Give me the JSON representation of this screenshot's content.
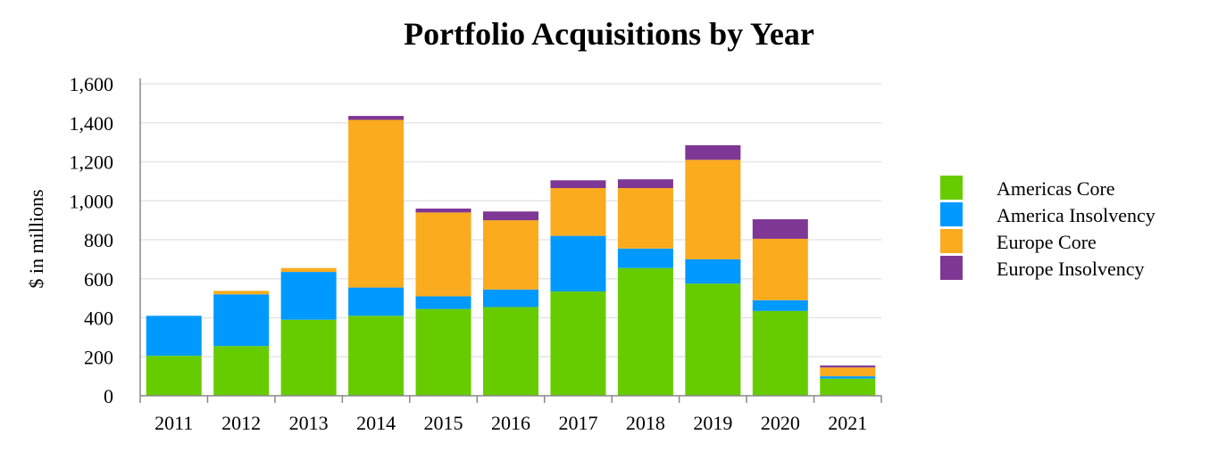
{
  "chart_data": {
    "type": "bar",
    "stacked": true,
    "title": "Portfolio Acquisitions by Year",
    "xlabel": "",
    "ylabel": "$ in millions",
    "ylim": [
      0,
      1600
    ],
    "yticks": [
      0,
      200,
      400,
      600,
      800,
      1000,
      1200,
      1400,
      1600
    ],
    "ytick_labels": [
      "0",
      "200",
      "400",
      "600",
      "800",
      "1,000",
      "1,200",
      "1,400",
      "1,600"
    ],
    "grid": true,
    "legend_position": "right",
    "categories": [
      "2011",
      "2012",
      "2013",
      "2014",
      "2015",
      "2016",
      "2017",
      "2018",
      "2019",
      "2020",
      "2021"
    ],
    "series": [
      {
        "name": "Americas Core",
        "color": "#66CC00",
        "values": [
          205,
          255,
          390,
          410,
          445,
          455,
          535,
          655,
          575,
          435,
          88
        ]
      },
      {
        "name": "America Insolvency",
        "color": "#0099FF",
        "values": [
          205,
          265,
          245,
          145,
          65,
          90,
          285,
          100,
          125,
          55,
          12
        ]
      },
      {
        "name": "Europe Core",
        "color": "#FAAB1E",
        "values": [
          0,
          18,
          20,
          860,
          430,
          355,
          245,
          310,
          510,
          315,
          45
        ]
      },
      {
        "name": "Europe Insolvency",
        "color": "#7E3794",
        "values": [
          0,
          0,
          0,
          20,
          20,
          45,
          40,
          45,
          75,
          100,
          10
        ]
      }
    ]
  }
}
